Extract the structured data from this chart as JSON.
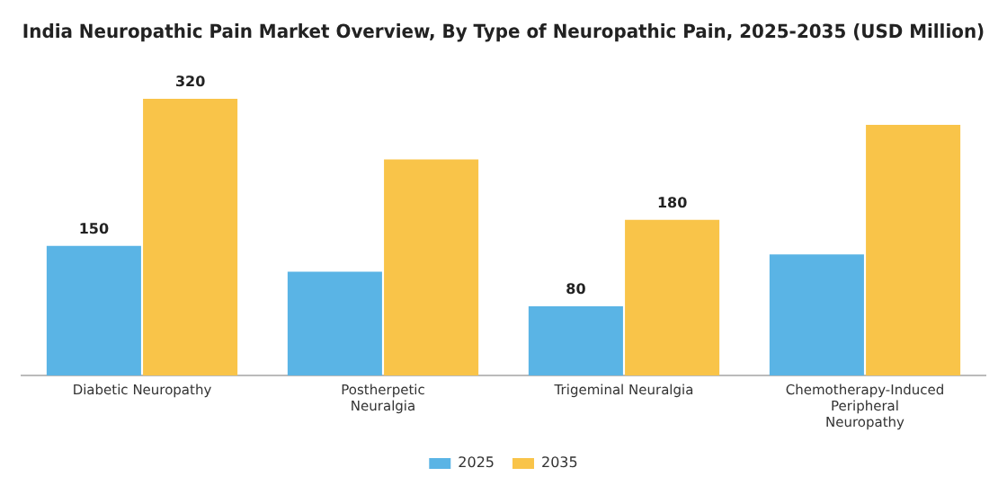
{
  "chart_data": {
    "type": "bar",
    "title": "India Neuropathic Pain Market Overview, By Type of Neuropathic Pain, 2025-2035 (USD Million)",
    "categories": [
      "Diabetic Neuropathy",
      "Postherpetic Neuralgia",
      "Trigeminal Neuralgia",
      "Chemotherapy-Induced Peripheral Neuropathy"
    ],
    "series": [
      {
        "name": "2025",
        "color": "#5ab4e5",
        "values": [
          150,
          120,
          80,
          140
        ],
        "value_labels": [
          "150",
          null,
          "80",
          null
        ]
      },
      {
        "name": "2035",
        "color": "#f9c449",
        "values": [
          320,
          250,
          180,
          290
        ],
        "value_labels": [
          "320",
          null,
          "180",
          null
        ]
      }
    ],
    "legend": "bottom",
    "grid": false
  }
}
